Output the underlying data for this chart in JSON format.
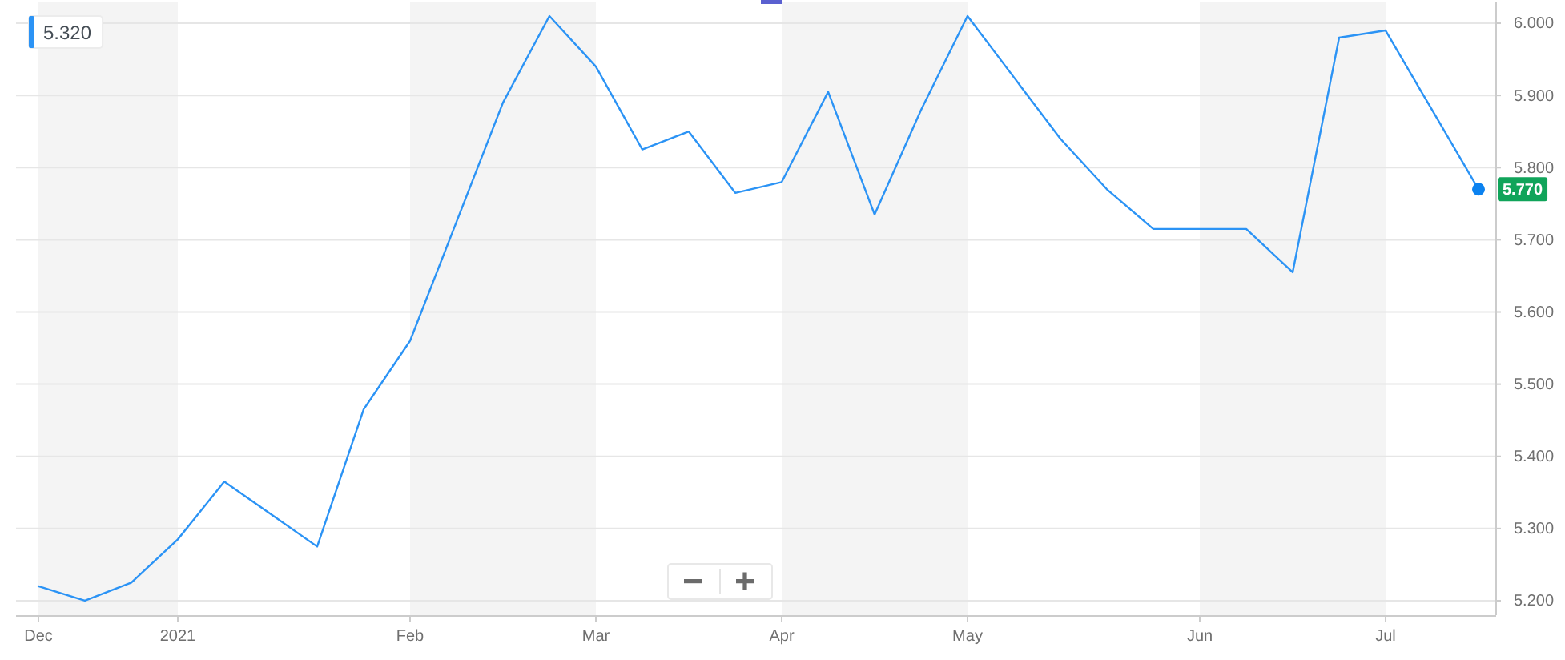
{
  "chart_data": {
    "type": "line",
    "categories": [
      "Dec",
      null,
      null,
      "2021",
      null,
      null,
      null,
      null,
      "Feb",
      null,
      null,
      null,
      "Mar",
      null,
      null,
      null,
      "Apr",
      null,
      null,
      null,
      "May",
      null,
      null,
      null,
      null,
      "Jun",
      null,
      null,
      null,
      "Jul",
      null,
      null
    ],
    "series": [
      {
        "color": "#2b93f5",
        "values": [
          5.22,
          5.2,
          5.225,
          5.285,
          5.365,
          5.32,
          5.275,
          5.465,
          5.56,
          5.725,
          5.89,
          6.01,
          5.94,
          5.825,
          5.85,
          5.765,
          5.78,
          5.905,
          5.735,
          5.88,
          6.01,
          5.925,
          5.84,
          5.77,
          5.715,
          5.715,
          5.715,
          5.655,
          5.98,
          5.99,
          5.88,
          5.77
        ]
      },
      {
        "type": "scatter",
        "color": "#0b82f0",
        "marker": "circle",
        "values": [
          null,
          null,
          null,
          null,
          null,
          null,
          null,
          null,
          null,
          null,
          null,
          null,
          null,
          null,
          null,
          null,
          null,
          null,
          null,
          null,
          null,
          null,
          null,
          null,
          null,
          null,
          null,
          null,
          null,
          null,
          null,
          5.77
        ]
      }
    ],
    "ylim": [
      5.18,
      6.03
    ],
    "yticks": [
      {
        "value": 5.2,
        "label": "5.200"
      },
      {
        "value": 5.3,
        "label": "5.300"
      },
      {
        "value": 5.4,
        "label": "5.400"
      },
      {
        "value": 5.5,
        "label": "5.500"
      },
      {
        "value": 5.6,
        "label": "5.600"
      },
      {
        "value": 5.7,
        "label": "5.700"
      },
      {
        "value": 5.8,
        "label": "5.800"
      },
      {
        "value": 5.9,
        "label": "5.900"
      },
      {
        "value": 6.0,
        "label": "6.000"
      }
    ],
    "grid": "y",
    "bands": [
      {
        "axis": "x",
        "from": "Dec",
        "to": "2021",
        "color": "#f4f4f4"
      },
      {
        "axis": "x",
        "from": "Feb",
        "to": "Mar",
        "color": "#f4f4f4"
      },
      {
        "axis": "x",
        "from": "Apr",
        "to": "May",
        "color": "#f4f4f4"
      },
      {
        "axis": "x",
        "from": "Jun",
        "to": "Jul",
        "color": "#f4f4f4"
      }
    ],
    "annotations": [
      "5.320",
      {
        "text": "5.770",
        "y": 5.77
      }
    ]
  }
}
